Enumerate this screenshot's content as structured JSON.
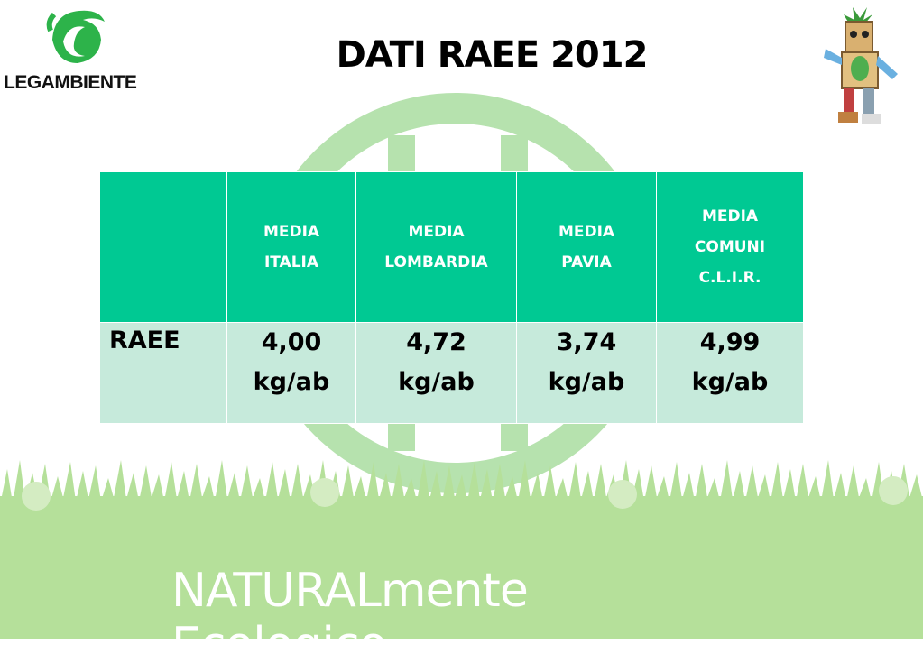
{
  "header": {
    "logo_text": "LEGAMBIENTE",
    "title": "DATI RAEE 2012"
  },
  "table": {
    "header_corner": "",
    "columns": [
      [
        "MEDIA",
        "ITALIA"
      ],
      [
        "MEDIA",
        "LOMBARDIA"
      ],
      [
        "MEDIA",
        "PAVIA"
      ],
      [
        "MEDIA",
        "COMUNI",
        "C.L.I.R."
      ]
    ],
    "rows": [
      {
        "label": "RAEE",
        "cells": [
          [
            "4,00",
            "kg/ab"
          ],
          [
            "4,72",
            "kg/ab"
          ],
          [
            "3,74",
            "kg/ab"
          ],
          [
            "4,99",
            "kg/ab"
          ]
        ]
      }
    ]
  },
  "footer": {
    "tagline": "NATURALmente Ecologico"
  },
  "colors": {
    "header_bg": "#00c993",
    "row_bg": "#c6eadb",
    "logo_green": "#2db34a",
    "watermark_green": "#a8dca0",
    "grass_green": "#b5e09a"
  },
  "icons": {
    "logo": "swan-logo-icon",
    "mascot": "recycled-robot-mascot-icon",
    "watermark": "legambiente-watermark-icon"
  }
}
